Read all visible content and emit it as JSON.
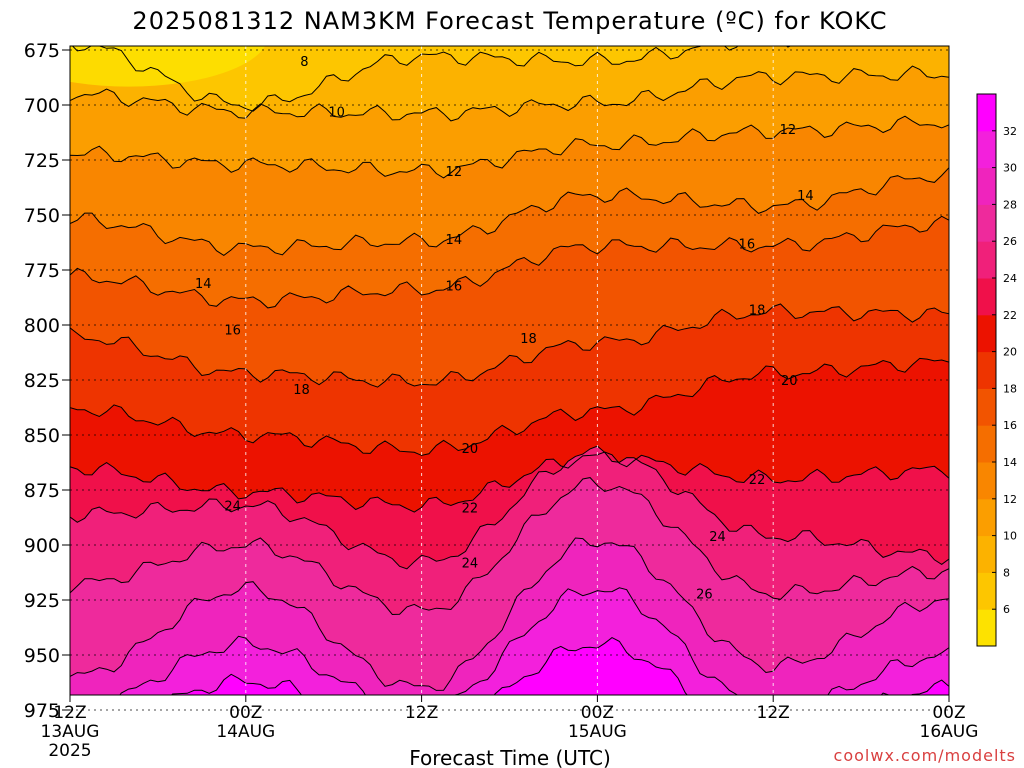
{
  "chart_data": {
    "type": "heatmap",
    "subtype": "time-height filled contour",
    "title": "2025081312 NAM3KM Forecast Temperature (ºC) for KOKC",
    "xlabel": "Forecast Time (UTC)",
    "ylabel": "",
    "y_axis": {
      "units": "hPa",
      "inverted": true,
      "ticks": [
        675,
        700,
        725,
        750,
        775,
        800,
        825,
        850,
        875,
        900,
        925,
        950,
        975
      ],
      "range": [
        675,
        975
      ]
    },
    "x_axis": {
      "units": "hours",
      "range": [
        0,
        60
      ],
      "ticks": [
        {
          "h": 0,
          "label": "12Z",
          "sub": "13AUG",
          "sub2": "2025"
        },
        {
          "h": 12,
          "label": "00Z",
          "sub": "14AUG",
          "sub2": ""
        },
        {
          "h": 24,
          "label": "12Z",
          "sub": "",
          "sub2": ""
        },
        {
          "h": 36,
          "label": "00Z",
          "sub": "15AUG",
          "sub2": ""
        },
        {
          "h": 48,
          "label": "12Z",
          "sub": "",
          "sub2": ""
        },
        {
          "h": 60,
          "label": "00Z",
          "sub": "16AUG",
          "sub2": ""
        }
      ]
    },
    "grid": true,
    "colorbar": {
      "position": "right",
      "ticks": [
        6,
        8,
        10,
        12,
        14,
        16,
        18,
        20,
        22,
        24,
        26,
        28,
        30,
        32
      ],
      "colors": [
        "#fde200",
        "#fdc600",
        "#fcb200",
        "#fb9e00",
        "#f98600",
        "#f56e00",
        "#f25400",
        "#ee3400",
        "#ec1200",
        "#f0104a",
        "#f0207a",
        "#ee2a9c",
        "#ef24bd",
        "#f320dc",
        "#ff00ff"
      ]
    },
    "surface_color": "#9d5a3c",
    "contour_labels": [
      {
        "v": "8",
        "h": 16.0,
        "p": 680
      },
      {
        "v": "10",
        "h": 18.2,
        "p": 703
      },
      {
        "v": "12",
        "h": 26.2,
        "p": 730
      },
      {
        "v": "12",
        "h": 49.0,
        "p": 711
      },
      {
        "v": "14",
        "h": 26.2,
        "p": 761
      },
      {
        "v": "14",
        "h": 9.1,
        "p": 781
      },
      {
        "v": "14",
        "h": 50.2,
        "p": 741
      },
      {
        "v": "16",
        "h": 11.1,
        "p": 802
      },
      {
        "v": "16",
        "h": 26.2,
        "p": 782
      },
      {
        "v": "16",
        "h": 46.2,
        "p": 763
      },
      {
        "v": "18",
        "h": 15.8,
        "p": 829
      },
      {
        "v": "18",
        "h": 31.3,
        "p": 806
      },
      {
        "v": "18",
        "h": 46.9,
        "p": 793
      },
      {
        "v": "20",
        "h": 27.3,
        "p": 856
      },
      {
        "v": "20",
        "h": 49.1,
        "p": 825
      },
      {
        "v": "22",
        "h": 27.3,
        "p": 883
      },
      {
        "v": "22",
        "h": 46.9,
        "p": 870
      },
      {
        "v": "24",
        "h": 11.1,
        "p": 882
      },
      {
        "v": "24",
        "h": 27.3,
        "p": 908
      },
      {
        "v": "24",
        "h": 44.2,
        "p": 896
      },
      {
        "v": "26",
        "h": 43.3,
        "p": 922
      }
    ]
  },
  "credit": "coolwx.com/modelts"
}
